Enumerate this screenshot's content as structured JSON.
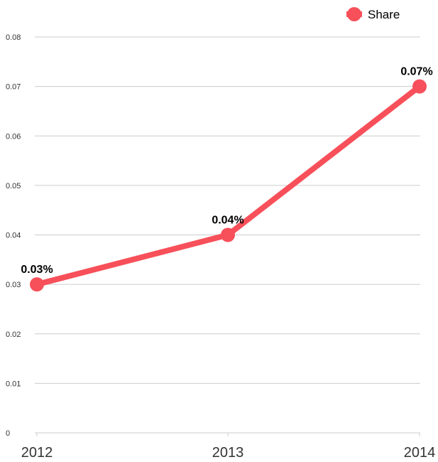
{
  "chart_data": {
    "type": "line",
    "x": [
      "2012",
      "2013",
      "2014"
    ],
    "series": [
      {
        "name": "Share",
        "values": [
          0.03,
          0.04,
          0.07
        ],
        "labels": [
          "0.03%",
          "0.04%",
          "0.07%"
        ],
        "color": "#f7505a"
      }
    ],
    "yticks": [
      "0",
      "0.01",
      "0.02",
      "0.03",
      "0.04",
      "0.05",
      "0.06",
      "0.07",
      "0.08"
    ],
    "ylim": [
      0,
      0.08
    ],
    "grid": true,
    "legend_position": "top-right"
  }
}
